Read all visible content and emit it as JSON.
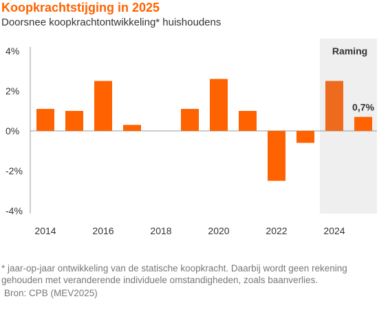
{
  "title": "Koopkrachtstijging in 2025",
  "subtitle": "Doorsnee koopkrachtontwikkeling* huishoudens",
  "footnote": "* jaar-op-jaar ontwikkeling van de statische koopkracht. Daarbij wordt geen rekening gehouden met veranderende individuele omstandigheden, zoals baanverlies.",
  "source": "Bron: CPB (MEV2025)",
  "colors": {
    "bar": "#ff6200",
    "bar_forecast": "#ee6a1d",
    "forecast_band": "#efefef",
    "axis": "#999999",
    "title": "#ff6200",
    "text": "#333333",
    "footnote": "#777777"
  },
  "chart_data": {
    "type": "bar",
    "x": [
      2014,
      2015,
      2016,
      2017,
      2018,
      2019,
      2020,
      2021,
      2022,
      2023,
      2024,
      2025
    ],
    "values": [
      1.1,
      1.0,
      2.5,
      0.3,
      0.0,
      1.1,
      2.6,
      1.0,
      -2.5,
      -0.6,
      2.5,
      0.7
    ],
    "ylim": [
      -4,
      4
    ],
    "yticks": [
      4,
      2,
      0,
      -2,
      -4
    ],
    "ytick_labels": [
      "4%",
      "2%",
      "0%",
      "-2%",
      "-4%"
    ],
    "xtick_labels": [
      "2014",
      "2016",
      "2018",
      "2020",
      "2022",
      "2024"
    ],
    "xtick_values": [
      2014,
      2016,
      2018,
      2020,
      2022,
      2024
    ],
    "forecast": {
      "label": "Raming",
      "from": 2024,
      "to": 2025
    },
    "data_label": {
      "x": 2025,
      "text": "0,7%"
    },
    "grid": false,
    "xlabel": "",
    "ylabel": ""
  }
}
